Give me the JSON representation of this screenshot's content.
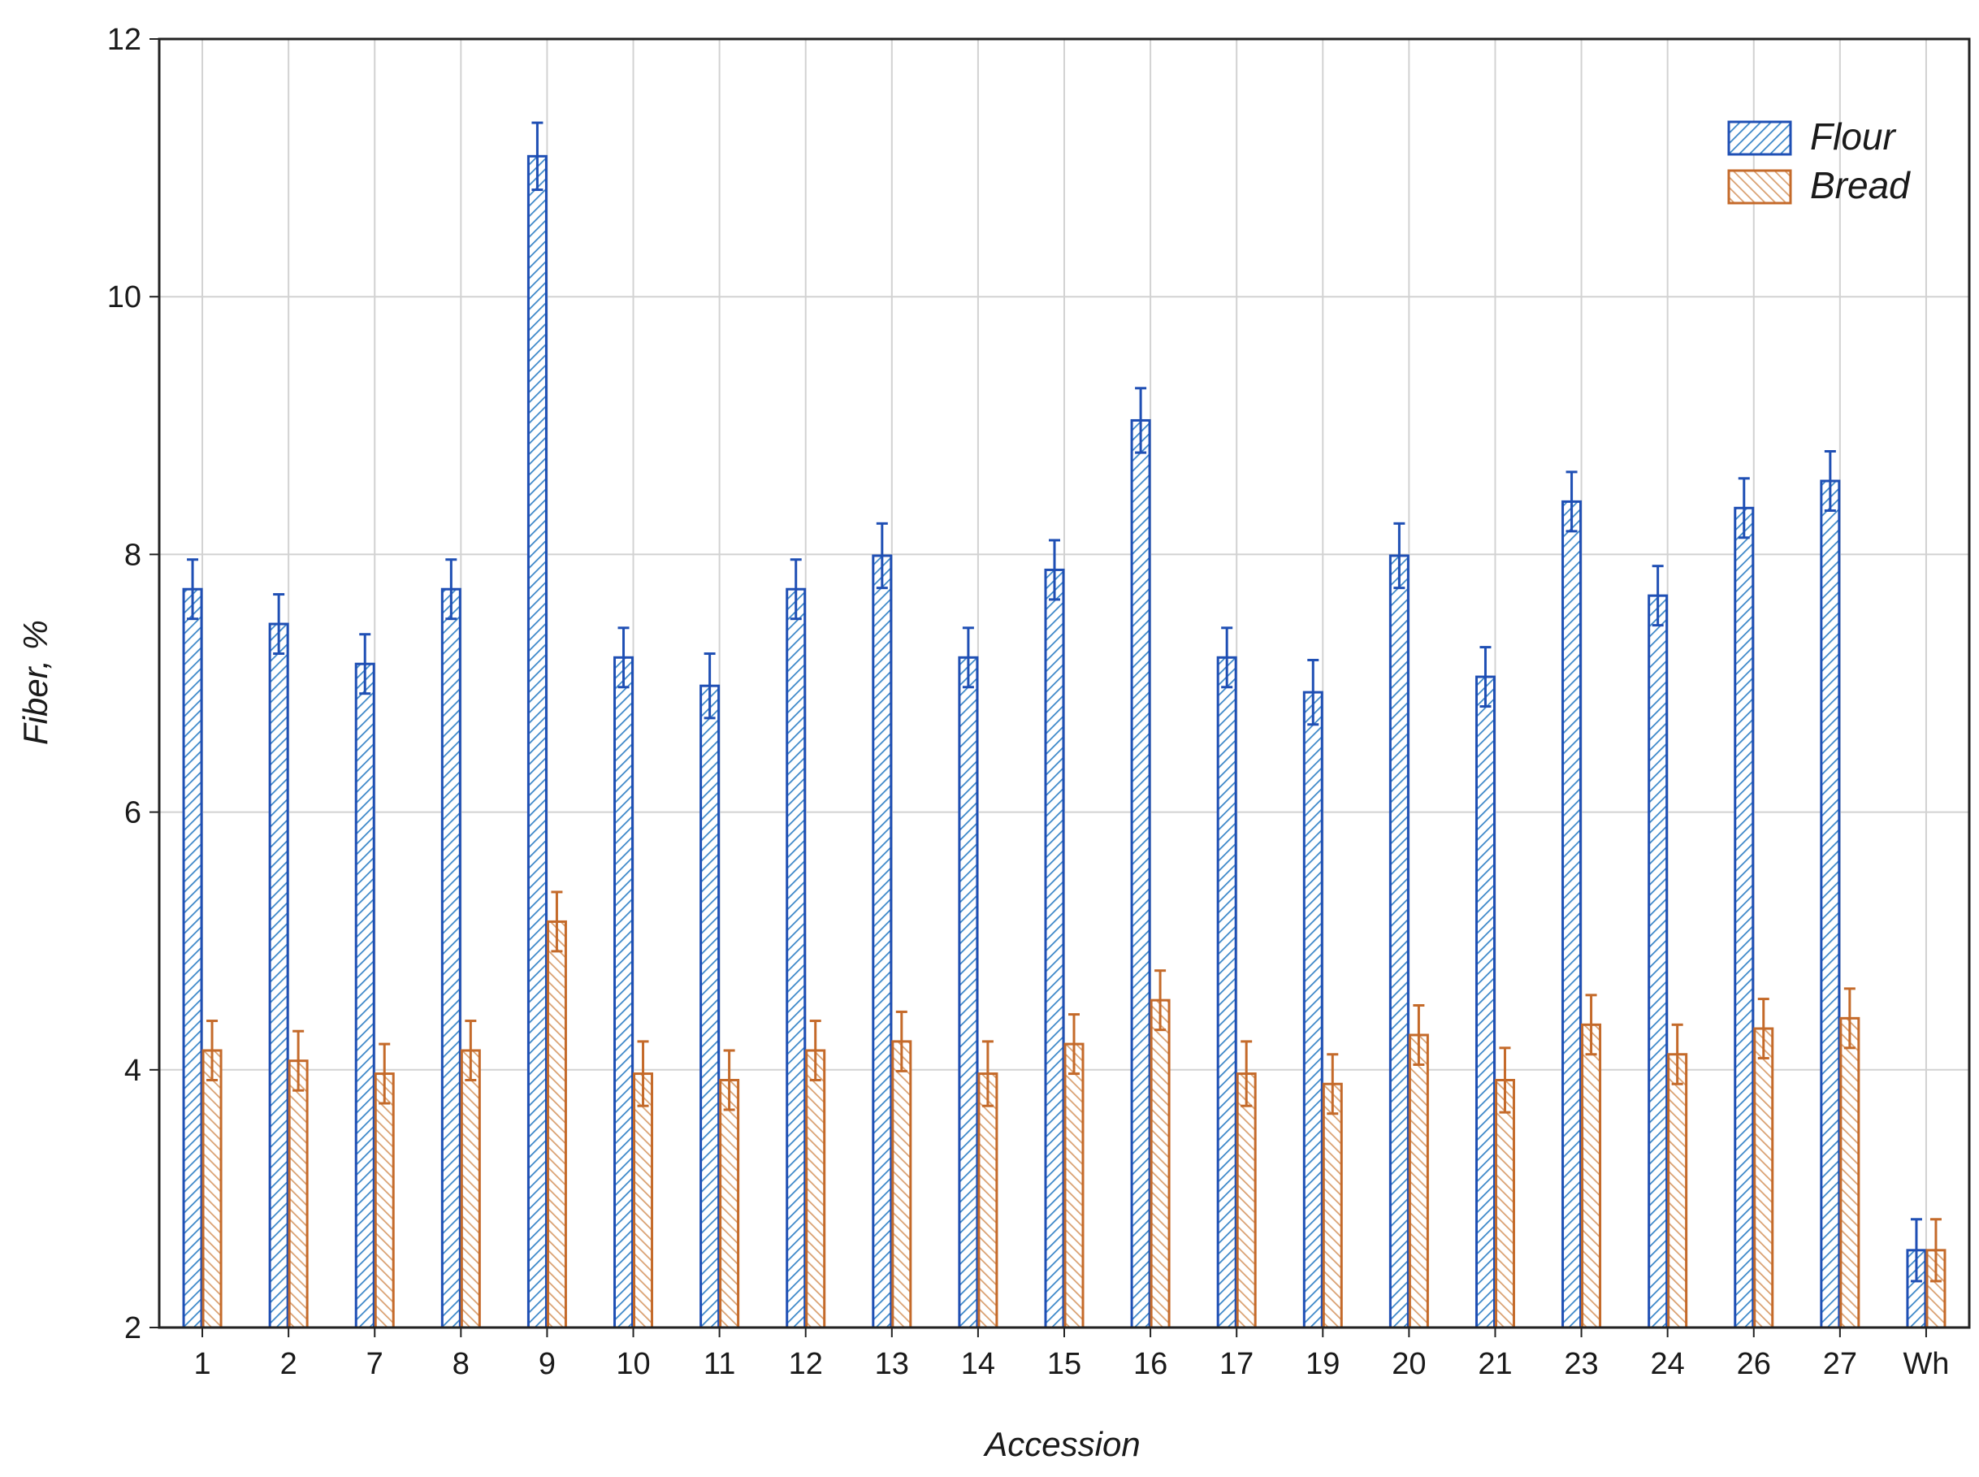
{
  "chart_data": {
    "type": "bar",
    "title": "",
    "xlabel": "Accession",
    "ylabel": "Fiber, %",
    "ylim": [
      2,
      12
    ],
    "yticks": [
      "2",
      "4",
      "6",
      "8",
      "10",
      "12"
    ],
    "grid": true,
    "legend_position": "top-right",
    "categories": [
      "1",
      "2",
      "7",
      "8",
      "9",
      "10",
      "11",
      "12",
      "13",
      "14",
      "15",
      "16",
      "17",
      "19",
      "20",
      "21",
      "23",
      "24",
      "26",
      "27",
      "Wh"
    ],
    "series": [
      {
        "name": "Flour",
        "color": "#1f4fb4",
        "pattern": "diagonal-hatch-right",
        "values": [
          7.73,
          7.46,
          7.15,
          7.73,
          11.09,
          7.2,
          6.98,
          7.73,
          7.99,
          7.2,
          7.88,
          9.04,
          7.2,
          6.93,
          7.99,
          7.05,
          8.41,
          7.68,
          8.36,
          8.57,
          2.6
        ],
        "errors": [
          0.23,
          0.23,
          0.23,
          0.23,
          0.26,
          0.23,
          0.25,
          0.23,
          0.25,
          0.23,
          0.23,
          0.25,
          0.23,
          0.25,
          0.25,
          0.23,
          0.23,
          0.23,
          0.23,
          0.23,
          0.24
        ]
      },
      {
        "name": "Bread",
        "color": "#c46a2a",
        "pattern": "diagonal-hatch-left",
        "values": [
          4.15,
          4.07,
          3.97,
          4.15,
          5.15,
          3.97,
          3.92,
          4.15,
          4.22,
          3.97,
          4.2,
          4.54,
          3.97,
          3.89,
          4.27,
          3.92,
          4.35,
          4.12,
          4.32,
          4.4,
          2.6
        ],
        "errors": [
          0.23,
          0.23,
          0.23,
          0.23,
          0.23,
          0.25,
          0.23,
          0.23,
          0.23,
          0.25,
          0.23,
          0.23,
          0.25,
          0.23,
          0.23,
          0.25,
          0.23,
          0.23,
          0.23,
          0.23,
          0.24
        ]
      }
    ]
  }
}
